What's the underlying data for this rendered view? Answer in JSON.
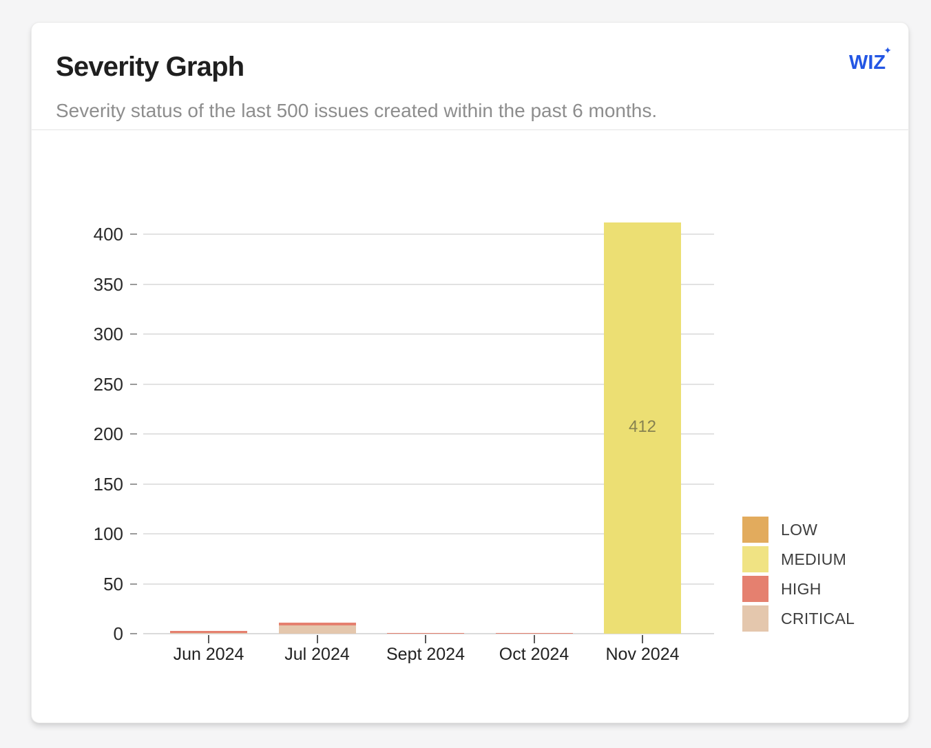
{
  "page": {
    "background_color": "#f5f5f6"
  },
  "card": {
    "title": "Severity Graph",
    "subtitle": "Severity status of the last 500 issues created within the past 6 months.",
    "logo": {
      "text": "WIZ",
      "sparkle": "✦",
      "color": "#2356e4"
    }
  },
  "chart_data": {
    "type": "bar",
    "stacked": true,
    "title": "Severity Graph",
    "categories": [
      "Jun 2024",
      "Jul 2024",
      "Sept 2024",
      "Oct 2024",
      "Nov 2024"
    ],
    "series": [
      {
        "name": "CRITICAL",
        "color": "#e4c7ad",
        "values": [
          1,
          8,
          0,
          0,
          0
        ]
      },
      {
        "name": "HIGH",
        "color": "#e5806f",
        "values": [
          2,
          3,
          1,
          1,
          0
        ]
      },
      {
        "name": "MEDIUM",
        "color": "#ecdf73",
        "values": [
          0,
          0,
          0,
          0,
          412
        ]
      },
      {
        "name": "LOW",
        "color": "#e2ab5d",
        "values": [
          0,
          0,
          0,
          0,
          0
        ]
      }
    ],
    "stack_order": "bottom-to-top as listed",
    "bar_labels": [
      "",
      "",
      "",
      "",
      "412"
    ],
    "xlabel": "",
    "ylabel": "",
    "ylim": [
      0,
      420
    ],
    "yticks": [
      0,
      50,
      100,
      150,
      200,
      250,
      300,
      350,
      400
    ],
    "grid": "horizontal",
    "legend": {
      "position": "right-bottom",
      "items": [
        {
          "label": "LOW",
          "color": "#e2ab5d"
        },
        {
          "label": "MEDIUM",
          "color": "#f0e383"
        },
        {
          "label": "HIGH",
          "color": "#e5806f"
        },
        {
          "label": "CRITICAL",
          "color": "#e4c7ad"
        }
      ]
    }
  }
}
